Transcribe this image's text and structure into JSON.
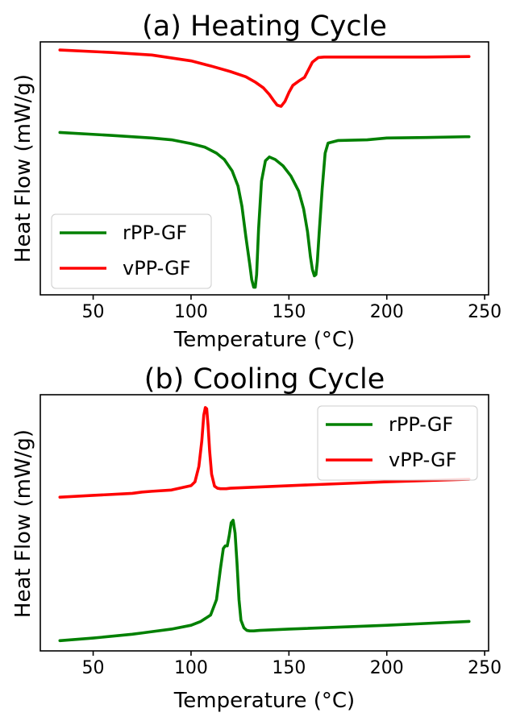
{
  "chart_data": [
    {
      "type": "line",
      "title": "(a) Heating Cycle",
      "xlabel": "Temperature (°C)",
      "ylabel": "Heat Flow (mW/g)",
      "xlim": [
        23,
        252
      ],
      "ylim": [
        0,
        1
      ],
      "xticks": [
        50,
        100,
        150,
        200,
        250
      ],
      "yticks": "hidden",
      "grid": false,
      "legend_position": "lower-left",
      "series": [
        {
          "name": "rPP-GF",
          "color": "#008000",
          "x": [
            33,
            60,
            80,
            90,
            100,
            107,
            113,
            117,
            121,
            124,
            126,
            128,
            130,
            131,
            132,
            132.8,
            133.5,
            134.5,
            136,
            138,
            140,
            143,
            147,
            151,
            155,
            157.5,
            159.5,
            161,
            162,
            163,
            163.8,
            164.5,
            165.5,
            167,
            168.5,
            170,
            175,
            190,
            200,
            220,
            240,
            242
          ],
          "y": [
            0.642,
            0.63,
            0.62,
            0.613,
            0.598,
            0.584,
            0.56,
            0.535,
            0.49,
            0.43,
            0.35,
            0.23,
            0.12,
            0.06,
            0.03,
            0.03,
            0.08,
            0.26,
            0.45,
            0.53,
            0.545,
            0.535,
            0.51,
            0.47,
            0.41,
            0.34,
            0.25,
            0.15,
            0.1,
            0.075,
            0.08,
            0.13,
            0.25,
            0.42,
            0.56,
            0.6,
            0.61,
            0.613,
            0.62,
            0.622,
            0.625,
            0.625
          ]
        },
        {
          "name": "vPP-GF",
          "color": "#ff0000",
          "x": [
            33,
            60,
            80,
            100,
            110,
            120,
            128,
            133,
            137,
            140,
            142,
            144,
            146,
            148,
            150,
            152,
            155,
            158,
            160,
            162,
            165,
            168,
            175,
            200,
            220,
            242
          ],
          "y": [
            0.968,
            0.958,
            0.948,
            0.925,
            0.905,
            0.883,
            0.862,
            0.84,
            0.818,
            0.792,
            0.77,
            0.75,
            0.745,
            0.765,
            0.8,
            0.828,
            0.845,
            0.86,
            0.89,
            0.92,
            0.938,
            0.94,
            0.94,
            0.94,
            0.94,
            0.942
          ]
        }
      ]
    },
    {
      "type": "line",
      "title": "(b) Cooling Cycle",
      "xlabel": "Temperature (°C)",
      "ylabel": "Heat Flow (mW/g)",
      "xlim": [
        23,
        252
      ],
      "ylim": [
        0,
        1
      ],
      "xticks": [
        50,
        100,
        150,
        200,
        250
      ],
      "yticks": "hidden",
      "grid": false,
      "legend_position": "upper-right",
      "series": [
        {
          "name": "rPP-GF",
          "color": "#008000",
          "x": [
            33,
            50,
            70,
            75,
            80,
            90,
            100,
            105,
            110,
            113,
            115,
            116.5,
            117.5,
            118.5,
            119.5,
            120.5,
            121.5,
            122.5,
            123.5,
            124.5,
            125.5,
            127,
            128.5,
            130,
            132,
            135,
            150,
            200,
            242
          ],
          "y": [
            0.04,
            0.05,
            0.065,
            0.07,
            0.075,
            0.085,
            0.1,
            0.115,
            0.14,
            0.2,
            0.32,
            0.4,
            0.41,
            0.41,
            0.45,
            0.5,
            0.51,
            0.46,
            0.34,
            0.2,
            0.12,
            0.09,
            0.08,
            0.078,
            0.078,
            0.08,
            0.085,
            0.1,
            0.115
          ]
        },
        {
          "name": "vPP-GF",
          "color": "#ff0000",
          "x": [
            33,
            50,
            70,
            75,
            80,
            90,
            100,
            102,
            104,
            105.5,
            106.5,
            107.3,
            108,
            108.7,
            109.5,
            110.5,
            112,
            113.5,
            115,
            118,
            120,
            150,
            200,
            242
          ],
          "y": [
            0.6,
            0.607,
            0.615,
            0.62,
            0.623,
            0.628,
            0.645,
            0.66,
            0.72,
            0.82,
            0.92,
            0.95,
            0.945,
            0.88,
            0.78,
            0.69,
            0.643,
            0.635,
            0.633,
            0.633,
            0.635,
            0.645,
            0.66,
            0.67
          ]
        }
      ]
    }
  ]
}
